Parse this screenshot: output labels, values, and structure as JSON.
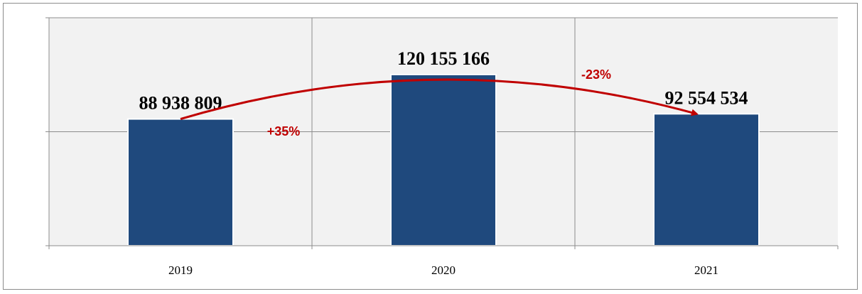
{
  "colors": {
    "plot_bg": "#f2f2f2",
    "bar": "#1f497d",
    "arrow": "#c00000",
    "grid": "#8c8c8c"
  },
  "chart_data": {
    "type": "bar",
    "categories": [
      "2019",
      "2020",
      "2021"
    ],
    "values": [
      88938809,
      120155166,
      92554534
    ],
    "data_labels": [
      "88 938 809",
      "120 155 166",
      "92 554 534"
    ],
    "ylim": [
      0,
      160000000
    ],
    "ytick_step": 80000000,
    "grid": true,
    "annotations": [
      {
        "text": "+35%",
        "from": "2019",
        "to": "2020"
      },
      {
        "text": "-23%",
        "from": "2020",
        "to": "2021"
      }
    ]
  }
}
